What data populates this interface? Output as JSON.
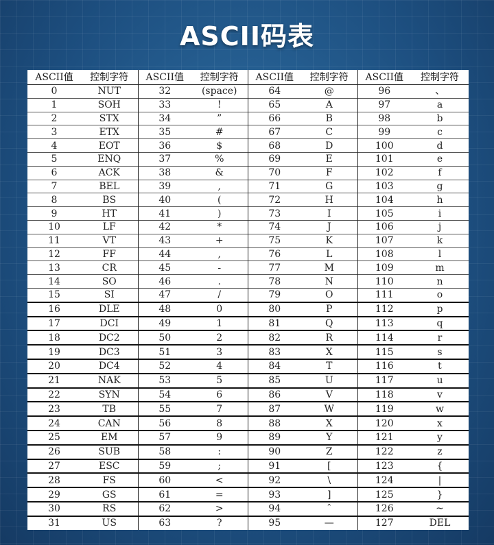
{
  "title": "ASCII码表",
  "table": {
    "headers": [
      "ASCII值",
      "控制字符",
      "ASCII值",
      "控制字符",
      "ASCII值",
      "控制字符",
      "ASCII值",
      "控制字符"
    ],
    "rows": [
      [
        "0",
        "NUT",
        "32",
        "(space)",
        "64",
        "@",
        "96",
        "、"
      ],
      [
        "1",
        "SOH",
        "33",
        "!",
        "65",
        "A",
        "97",
        "a"
      ],
      [
        "2",
        "STX",
        "34",
        "”",
        "66",
        "B",
        "98",
        "b"
      ],
      [
        "3",
        "ETX",
        "35",
        "#",
        "67",
        "C",
        "99",
        "c"
      ],
      [
        "4",
        "EOT",
        "36",
        "$",
        "68",
        "D",
        "100",
        "d"
      ],
      [
        "5",
        "ENQ",
        "37",
        "%",
        "69",
        "E",
        "101",
        "e"
      ],
      [
        "6",
        "ACK",
        "38",
        "&",
        "70",
        "F",
        "102",
        "f"
      ],
      [
        "7",
        "BEL",
        "39",
        ",",
        "71",
        "G",
        "103",
        "g"
      ],
      [
        "8",
        "BS",
        "40",
        "(",
        "72",
        "H",
        "104",
        "h"
      ],
      [
        "9",
        "HT",
        "41",
        ")",
        "73",
        "I",
        "105",
        "i"
      ],
      [
        "10",
        "LF",
        "42",
        "*",
        "74",
        "J",
        "106",
        "j"
      ],
      [
        "11",
        "VT",
        "43",
        "+",
        "75",
        "K",
        "107",
        "k"
      ],
      [
        "12",
        "FF",
        "44",
        ",",
        "76",
        "L",
        "108",
        "l"
      ],
      [
        "13",
        "CR",
        "45",
        "-",
        "77",
        "M",
        "109",
        "m"
      ],
      [
        "14",
        "SO",
        "46",
        ".",
        "78",
        "N",
        "110",
        "n"
      ],
      [
        "15",
        "SI",
        "47",
        "/",
        "79",
        "O",
        "111",
        "o"
      ],
      [
        "16",
        "DLE",
        "48",
        "0",
        "80",
        "P",
        "112",
        "p"
      ],
      [
        "17",
        "DCI",
        "49",
        "1",
        "81",
        "Q",
        "113",
        "q"
      ],
      [
        "18",
        "DC2",
        "50",
        "2",
        "82",
        "R",
        "114",
        "r"
      ],
      [
        "19",
        "DC3",
        "51",
        "3",
        "83",
        "X",
        "115",
        "s"
      ],
      [
        "20",
        "DC4",
        "52",
        "4",
        "84",
        "T",
        "116",
        "t"
      ],
      [
        "21",
        "NAK",
        "53",
        "5",
        "85",
        "U",
        "117",
        "u"
      ],
      [
        "22",
        "SYN",
        "54",
        "6",
        "86",
        "V",
        "118",
        "v"
      ],
      [
        "23",
        "TB",
        "55",
        "7",
        "87",
        "W",
        "119",
        "w"
      ],
      [
        "24",
        "CAN",
        "56",
        "8",
        "88",
        "X",
        "120",
        "x"
      ],
      [
        "25",
        "EM",
        "57",
        "9",
        "89",
        "Y",
        "121",
        "y"
      ],
      [
        "26",
        "SUB",
        "58",
        ":",
        "90",
        "Z",
        "122",
        "z"
      ],
      [
        "27",
        "ESC",
        "59",
        ";",
        "91",
        "[",
        "123",
        "{"
      ],
      [
        "28",
        "FS",
        "60",
        "<",
        "92",
        "\\",
        "124",
        "|"
      ],
      [
        "29",
        "GS",
        "61",
        "=",
        "93",
        "]",
        "125",
        "}"
      ],
      [
        "30",
        "RS",
        "62",
        ">",
        "94",
        "ˆ",
        "126",
        "~"
      ],
      [
        "31",
        "US",
        "63",
        "?",
        "95",
        "—",
        "127",
        "DEL"
      ]
    ]
  }
}
